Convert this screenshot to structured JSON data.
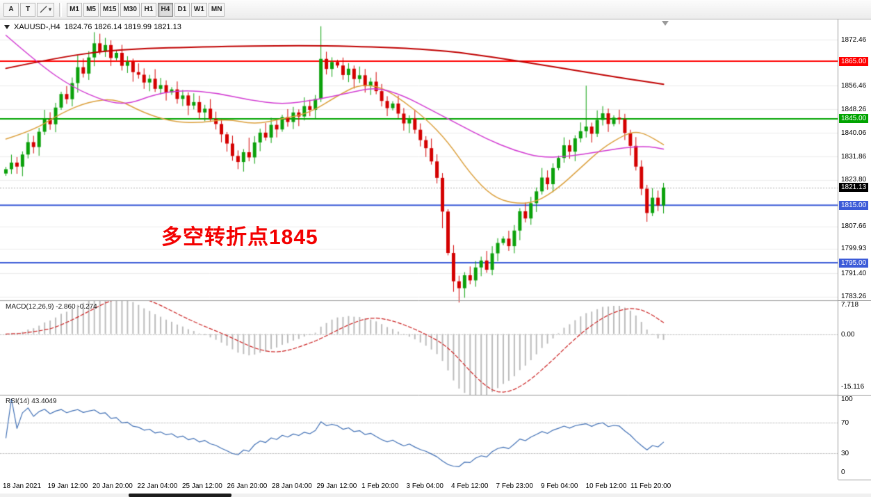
{
  "toolbar": {
    "tool_a": "A",
    "tool_t": "T",
    "drawing_tool": "cursor-lines",
    "timeframes": [
      {
        "label": "M1",
        "active": false
      },
      {
        "label": "M5",
        "active": false
      },
      {
        "label": "M15",
        "active": false
      },
      {
        "label": "M30",
        "active": false
      },
      {
        "label": "H1",
        "active": false
      },
      {
        "label": "H4",
        "active": true
      },
      {
        "label": "D1",
        "active": false
      },
      {
        "label": "W1",
        "active": false
      },
      {
        "label": "MN",
        "active": false
      }
    ]
  },
  "chart": {
    "symbol_period": "XAUUSD-,H4",
    "ohlc": "1824.76 1826.14 1819.99 1821.13",
    "annotation_text": "多空转折点1845",
    "annotation_color": "#f30000"
  },
  "indicators": {
    "macd": {
      "label": "MACD(12,26,9) -2.860 -0.274",
      "axis": [
        {
          "text": "7.718",
          "value": 7.718
        },
        {
          "text": "0.00",
          "value": 0
        },
        {
          "text": "-15.116",
          "value": -15.116
        }
      ]
    },
    "rsi": {
      "label": "RSI(14) 43.4049",
      "axis": [
        {
          "text": "100",
          "value": 100
        },
        {
          "text": "70",
          "value": 70
        },
        {
          "text": "30",
          "value": 30
        },
        {
          "text": "0",
          "value": 0
        }
      ]
    }
  },
  "price_axis": {
    "labels": [
      {
        "text": "1872.46",
        "price": 1872.46,
        "kind": "plain"
      },
      {
        "text": "1865.00",
        "price": 1865.0,
        "kind": "level-red"
      },
      {
        "text": "1856.46",
        "price": 1856.46,
        "kind": "plain"
      },
      {
        "text": "1848.26",
        "price": 1848.26,
        "kind": "plain"
      },
      {
        "text": "1845.00",
        "price": 1845.0,
        "kind": "level-green"
      },
      {
        "text": "1840.06",
        "price": 1840.06,
        "kind": "plain"
      },
      {
        "text": "1831.86",
        "price": 1831.86,
        "kind": "plain"
      },
      {
        "text": "1823.80",
        "price": 1823.8,
        "kind": "plain"
      },
      {
        "text": "1821.13",
        "price": 1821.13,
        "kind": "current"
      },
      {
        "text": "1815.00",
        "price": 1815.0,
        "kind": "level-blue"
      },
      {
        "text": "1807.66",
        "price": 1807.66,
        "kind": "plain"
      },
      {
        "text": "1799.93",
        "price": 1799.93,
        "kind": "plain"
      },
      {
        "text": "1795.00",
        "price": 1795.0,
        "kind": "level-blue"
      },
      {
        "text": "1791.40",
        "price": 1791.4,
        "kind": "plain"
      },
      {
        "text": "1783.26",
        "price": 1783.26,
        "kind": "plain"
      }
    ]
  },
  "time_axis": [
    "18 Jan 2021",
    "19 Jan 12:00",
    "20 Jan 20:00",
    "22 Jan 04:00",
    "25 Jan 12:00",
    "26 Jan 20:00",
    "28 Jan 04:00",
    "29 Jan 12:00",
    "1 Feb 20:00",
    "3 Feb 04:00",
    "4 Feb 12:00",
    "7 Feb 23:00",
    "9 Feb 04:00",
    "10 Feb 12:00",
    "11 Feb 20:00"
  ],
  "chart_data": {
    "type": "candlestick",
    "symbol": "XAUUSD",
    "period": "H4",
    "current_candle": {
      "open": 1824.76,
      "high": 1826.14,
      "low": 1819.99,
      "close": 1821.13
    },
    "current_price": 1821.13,
    "y_range": [
      1782,
      1879
    ],
    "first_open": 1826.0,
    "closes": [
      1827.5,
      1829.8,
      1828.4,
      1832.6,
      1836.9,
      1835.2,
      1840.5,
      1844.8,
      1843.1,
      1848.9,
      1853.6,
      1851.8,
      1857.4,
      1862.9,
      1860.7,
      1866.3,
      1871.2,
      1868.4,
      1870.6,
      1866.1,
      1867.9,
      1863.4,
      1864.8,
      1861.2,
      1860.3,
      1857.6,
      1858.9,
      1855.4,
      1856.7,
      1854.1,
      1855.2,
      1851.9,
      1853.1,
      1849.6,
      1850.8,
      1847.2,
      1848.5,
      1845.0,
      1843.2,
      1839.6,
      1836.4,
      1832.1,
      1830.0,
      1833.4,
      1831.6,
      1836.8,
      1840.2,
      1838.5,
      1842.9,
      1841.3,
      1845.6,
      1843.9,
      1847.2,
      1845.8,
      1849.4,
      1848.1,
      1851.9,
      1865.8,
      1862.3,
      1864.7,
      1863.5,
      1860.2,
      1862.4,
      1858.8,
      1860.1,
      1856.3,
      1857.9,
      1854.6,
      1851.2,
      1848.7,
      1850.3,
      1846.8,
      1843.4,
      1845.1,
      1841.2,
      1837.6,
      1834.8,
      1830.2,
      1824.5,
      1812.8,
      1798.4,
      1788.6,
      1786.2,
      1790.7,
      1788.9,
      1793.4,
      1795.8,
      1792.6,
      1798.3,
      1801.9,
      1803.4,
      1800.8,
      1806.2,
      1812.9,
      1810.4,
      1815.7,
      1819.8,
      1824.6,
      1822.3,
      1827.9,
      1831.4,
      1835.8,
      1833.6,
      1838.2,
      1840.7,
      1842.3,
      1839.8,
      1844.6,
      1846.9,
      1843.2,
      1845.4,
      1844.8,
      1840.1,
      1835.6,
      1828.4,
      1820.7,
      1812.3,
      1817.6,
      1814.9,
      1821.13
    ],
    "wick_boost_up": {
      "13": 3,
      "16": 2.5,
      "44": 2,
      "57": 8,
      "105": 12
    },
    "wick_boost_down": {
      "40": 2,
      "79": 3,
      "81": 2,
      "82": 2.5
    },
    "levels": [
      {
        "price": 1865.0,
        "color": "#ff0000",
        "label": "1865.00"
      },
      {
        "price": 1845.0,
        "color": "#00a400",
        "label": "1845.00"
      },
      {
        "price": 1815.0,
        "color": "#3c5bd8",
        "label": "1815.00"
      },
      {
        "price": 1795.0,
        "color": "#3c5bd8",
        "label": "1795.00"
      }
    ],
    "grid_prices": [
      1872.46,
      1856.46,
      1848.26,
      1840.06,
      1831.86,
      1823.8,
      1807.66,
      1799.93,
      1791.4,
      1783.26
    ],
    "ma_red": [
      [
        0,
        1862.5
      ],
      [
        10,
        1866.5
      ],
      [
        20,
        1869
      ],
      [
        35,
        1870
      ],
      [
        55,
        1870.5
      ],
      [
        70,
        1869.8
      ],
      [
        80,
        1868.5
      ],
      [
        88,
        1866.5
      ],
      [
        96,
        1864
      ],
      [
        104,
        1861.5
      ],
      [
        112,
        1859
      ],
      [
        119,
        1857
      ]
    ],
    "ma_magenta": [
      [
        0,
        1874
      ],
      [
        6,
        1864
      ],
      [
        12,
        1856
      ],
      [
        18,
        1851
      ],
      [
        22,
        1850
      ],
      [
        27,
        1853.5
      ],
      [
        32,
        1855
      ],
      [
        38,
        1854
      ],
      [
        44,
        1851.5
      ],
      [
        50,
        1850
      ],
      [
        56,
        1851.5
      ],
      [
        62,
        1854
      ],
      [
        67,
        1856
      ],
      [
        72,
        1853
      ],
      [
        77,
        1848
      ],
      [
        82,
        1843
      ],
      [
        87,
        1838
      ],
      [
        92,
        1834
      ],
      [
        97,
        1831.5
      ],
      [
        102,
        1832
      ],
      [
        107,
        1833.5
      ],
      [
        112,
        1835
      ],
      [
        116,
        1835.5
      ],
      [
        119,
        1834.5
      ]
    ],
    "ma_orange": [
      [
        0,
        1838
      ],
      [
        5,
        1841
      ],
      [
        10,
        1847
      ],
      [
        15,
        1851
      ],
      [
        20,
        1852
      ],
      [
        25,
        1847
      ],
      [
        30,
        1844
      ],
      [
        35,
        1843.5
      ],
      [
        40,
        1845
      ],
      [
        45,
        1843
      ],
      [
        50,
        1845
      ],
      [
        55,
        1847
      ],
      [
        60,
        1853
      ],
      [
        64,
        1857
      ],
      [
        68,
        1856
      ],
      [
        72,
        1851
      ],
      [
        76,
        1845
      ],
      [
        80,
        1837
      ],
      [
        84,
        1826
      ],
      [
        88,
        1818
      ],
      [
        92,
        1815.5
      ],
      [
        96,
        1816
      ],
      [
        100,
        1821
      ],
      [
        104,
        1828
      ],
      [
        108,
        1835
      ],
      [
        112,
        1839.5
      ],
      [
        114,
        1840.5
      ],
      [
        116,
        1839.5
      ],
      [
        119,
        1836
      ]
    ],
    "macd": {
      "params": [
        12,
        26,
        9
      ],
      "last_main": -2.86,
      "last_signal": -0.274,
      "axis_range": [
        7.718,
        -15.116
      ]
    },
    "rsi": {
      "period": 14,
      "last": 43.4049,
      "levels": [
        70,
        30
      ]
    },
    "colors": {
      "bull": "#0ba10b",
      "bear": "#d40000",
      "ma_red": "#c00000",
      "ma_magenta": "#d23bd2",
      "ma_orange": "#dca03c",
      "macd_bar": "#bcbcbc",
      "macd_signal": "#cc2222",
      "rsi_line": "#3f6fb5",
      "level_red": "#ff0000",
      "level_green": "#00a400",
      "level_blue": "#3c5bd8"
    }
  }
}
